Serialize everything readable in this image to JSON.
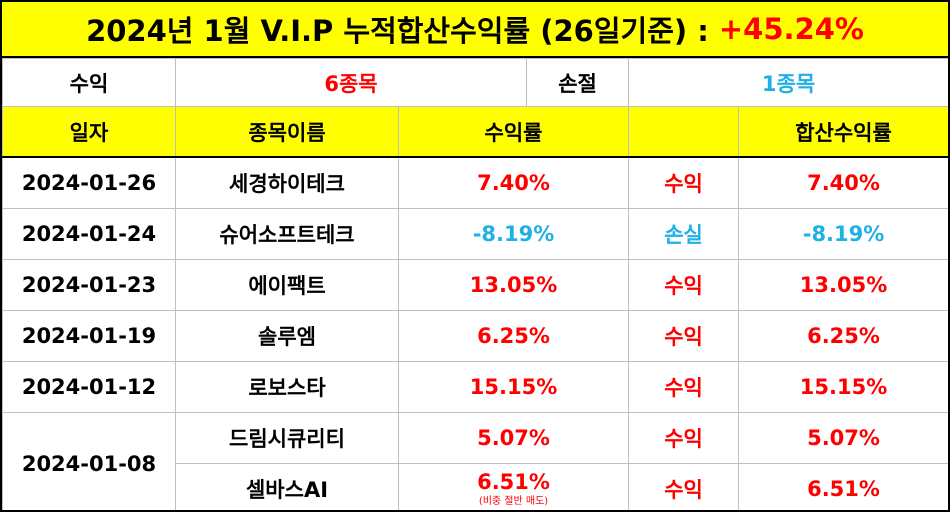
{
  "title": {
    "text": "2024년 1월 V.I.P 누적합산수익률 (26일기준) :",
    "total": "+45.24%"
  },
  "summary": {
    "profit_label": "수익",
    "profit_count": "6종목",
    "loss_label": "손절",
    "loss_count": "1종목"
  },
  "headers": {
    "date": "일자",
    "name": "종목이름",
    "return": "수익률",
    "status": "",
    "cumulative": "합산수익률"
  },
  "rows": [
    {
      "date": "2024-01-26",
      "name": "세경하이테크",
      "return": "7.40%",
      "status": "수익",
      "cumulative": "7.40%"
    },
    {
      "date": "2024-01-24",
      "name": "슈어소프트테크",
      "return": "-8.19%",
      "status": "손실",
      "cumulative": "-8.19%"
    },
    {
      "date": "2024-01-23",
      "name": "에이팩트",
      "return": "13.05%",
      "status": "수익",
      "cumulative": "13.05%"
    },
    {
      "date": "2024-01-19",
      "name": "솔루엠",
      "return": "6.25%",
      "status": "수익",
      "cumulative": "6.25%"
    },
    {
      "date": "2024-01-12",
      "name": "로보스타",
      "return": "15.15%",
      "status": "수익",
      "cumulative": "15.15%"
    },
    {
      "date": "2024-01-08",
      "name": "드림시큐리티",
      "return": "5.07%",
      "status": "수익",
      "cumulative": "5.07%"
    },
    {
      "date": "2024-01-08",
      "name": "셀바스AI",
      "return": "6.51%",
      "note": "(비중 절반 매도)",
      "status": "수익",
      "cumulative": "6.51%"
    }
  ],
  "colors": {
    "header_bg": "#ffff00",
    "profit": "#ff0000",
    "loss": "#1fb1e6"
  }
}
